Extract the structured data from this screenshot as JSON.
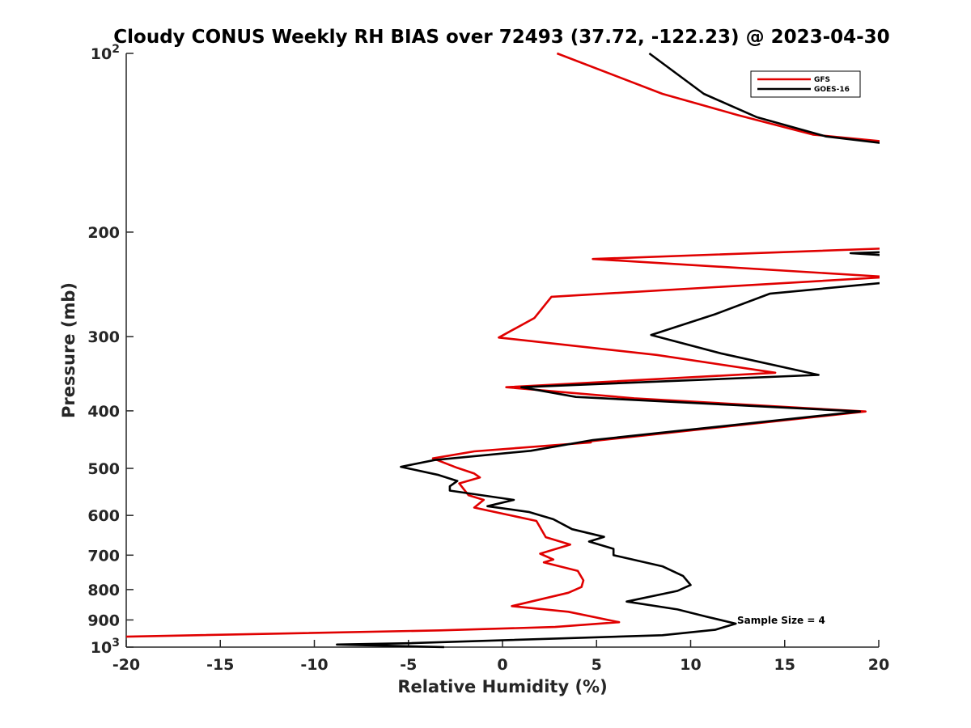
{
  "chart_data": {
    "type": "line",
    "title": "Cloudy CONUS Weekly RH BIAS over 72493 (37.72, -122.23) @ 2023-04-30",
    "xlabel": "Relative Humidity (%)",
    "ylabel": "Pressure (mb)",
    "xlim": [
      -20,
      20
    ],
    "ylim": [
      100,
      1000
    ],
    "yscale": "log",
    "y_reversed": true,
    "grid": false,
    "legend_placement": "top-right",
    "annotation": "Sample Size = 4",
    "x_ticks": [
      {
        "value": -20,
        "label": "-20"
      },
      {
        "value": -15,
        "label": "-15"
      },
      {
        "value": -10,
        "label": "-10"
      },
      {
        "value": -5,
        "label": "-5"
      },
      {
        "value": 0,
        "label": "0"
      },
      {
        "value": 5,
        "label": "5"
      },
      {
        "value": 10,
        "label": "10"
      },
      {
        "value": 15,
        "label": "15"
      },
      {
        "value": 20,
        "label": "20"
      }
    ],
    "y_ticks": [
      {
        "value": 100,
        "label": "10",
        "sup": "2"
      },
      {
        "value": 200,
        "label": "200"
      },
      {
        "value": 300,
        "label": "300"
      },
      {
        "value": 400,
        "label": "400"
      },
      {
        "value": 500,
        "label": "500"
      },
      {
        "value": 600,
        "label": "600"
      },
      {
        "value": 700,
        "label": "700"
      },
      {
        "value": 800,
        "label": "800"
      },
      {
        "value": 900,
        "label": "900"
      },
      {
        "value": 1000,
        "label": "10",
        "sup": "3"
      }
    ],
    "series": [
      {
        "name": "GFS",
        "color": "#e00000",
        "points": [
          [
            2.9,
            100
          ],
          [
            8.5,
            117
          ],
          [
            12.5,
            127
          ],
          [
            16.5,
            137
          ],
          [
            20.5,
            141
          ],
          [
            20.5,
            213
          ],
          [
            4.8,
            222
          ],
          [
            20.5,
            238
          ],
          [
            2.6,
            257
          ],
          [
            1.7,
            279
          ],
          [
            -0.2,
            301
          ],
          [
            8.2,
            322
          ],
          [
            14.5,
            345
          ],
          [
            0.2,
            365
          ],
          [
            7.0,
            381
          ],
          [
            19.3,
            401
          ],
          [
            4.7,
            450
          ],
          [
            4.7,
            452
          ],
          [
            -1.5,
            468
          ],
          [
            -3.7,
            481
          ],
          [
            -2.4,
            499
          ],
          [
            -1.5,
            510
          ],
          [
            -1.2,
            518
          ],
          [
            -2.3,
            530
          ],
          [
            -1.8,
            555
          ],
          [
            -1.0,
            565
          ],
          [
            -1.5,
            582
          ],
          [
            1.8,
            613
          ],
          [
            2.3,
            653
          ],
          [
            3.6,
            672
          ],
          [
            2.0,
            696
          ],
          [
            2.7,
            712
          ],
          [
            2.2,
            720
          ],
          [
            4.0,
            744
          ],
          [
            4.3,
            772
          ],
          [
            4.2,
            792
          ],
          [
            3.5,
            810
          ],
          [
            0.5,
            853
          ],
          [
            3.5,
            872
          ],
          [
            6.2,
            908
          ],
          [
            2.8,
            925
          ],
          [
            -3.3,
            937
          ],
          [
            -20.5,
            961
          ]
        ]
      },
      {
        "name": "GOES-16",
        "color": "#000000",
        "points": [
          [
            7.8,
            100
          ],
          [
            10.7,
            117
          ],
          [
            13.5,
            128
          ],
          [
            17.2,
            138
          ],
          [
            20.5,
            142
          ],
          [
            20.5,
            216
          ],
          [
            18.5,
            217
          ],
          [
            20.5,
            219
          ],
          [
            20.5,
            243
          ],
          [
            14.2,
            254
          ],
          [
            11.3,
            275
          ],
          [
            7.9,
            298
          ],
          [
            11.6,
            320
          ],
          [
            16.8,
            348
          ],
          [
            1.0,
            365
          ],
          [
            3.9,
            379
          ],
          [
            19.0,
            401
          ],
          [
            4.8,
            448
          ],
          [
            1.5,
            467
          ],
          [
            -3.6,
            484
          ],
          [
            -5.4,
            497
          ],
          [
            -3.4,
            513
          ],
          [
            -2.4,
            525
          ],
          [
            -2.8,
            536
          ],
          [
            -2.8,
            545
          ],
          [
            0.6,
            565
          ],
          [
            -0.8,
            579
          ],
          [
            1.4,
            592
          ],
          [
            2.7,
            609
          ],
          [
            3.7,
            633
          ],
          [
            5.4,
            652
          ],
          [
            4.6,
            664
          ],
          [
            5.9,
            683
          ],
          [
            5.9,
            700
          ],
          [
            8.5,
            731
          ],
          [
            9.6,
            759
          ],
          [
            10.0,
            786
          ],
          [
            9.3,
            804
          ],
          [
            6.6,
            838
          ],
          [
            9.3,
            864
          ],
          [
            10.8,
            888
          ],
          [
            12.4,
            913
          ],
          [
            11.3,
            935
          ],
          [
            8.5,
            955
          ],
          [
            -5.0,
            985
          ],
          [
            -8.8,
            990
          ],
          [
            -3.1,
            1000
          ]
        ]
      }
    ]
  }
}
